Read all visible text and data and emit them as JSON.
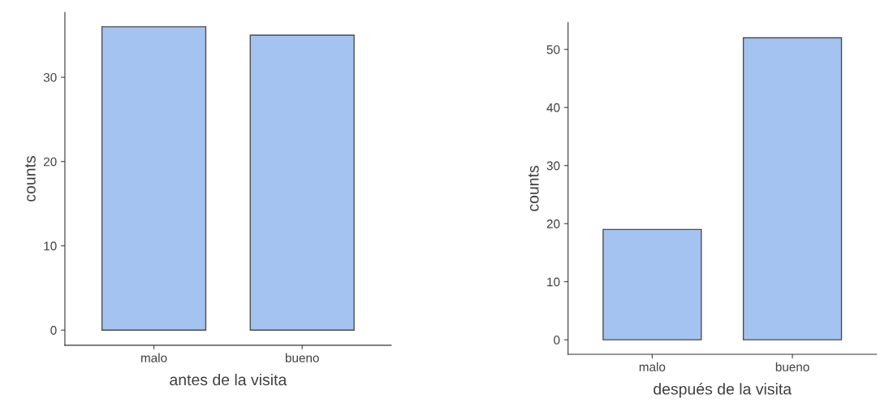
{
  "chart_data": [
    {
      "type": "bar",
      "xlabel": "antes de la visita",
      "ylabel": "counts",
      "categories": [
        "malo",
        "bueno"
      ],
      "values": [
        36,
        35
      ],
      "color": "#a4c3f0",
      "ylim": [
        -1.8,
        37.7
      ],
      "yticks": [
        0,
        10,
        20,
        30
      ],
      "grid": false,
      "legend": false
    },
    {
      "type": "bar",
      "xlabel": "después de la visita",
      "ylabel": "counts",
      "categories": [
        "malo",
        "bueno"
      ],
      "values": [
        19,
        52
      ],
      "color": "#a4c3f0",
      "ylim": [
        -2.5,
        54.6
      ],
      "yticks": [
        0,
        10,
        20,
        30,
        40,
        50
      ],
      "grid": false,
      "legend": false
    }
  ]
}
